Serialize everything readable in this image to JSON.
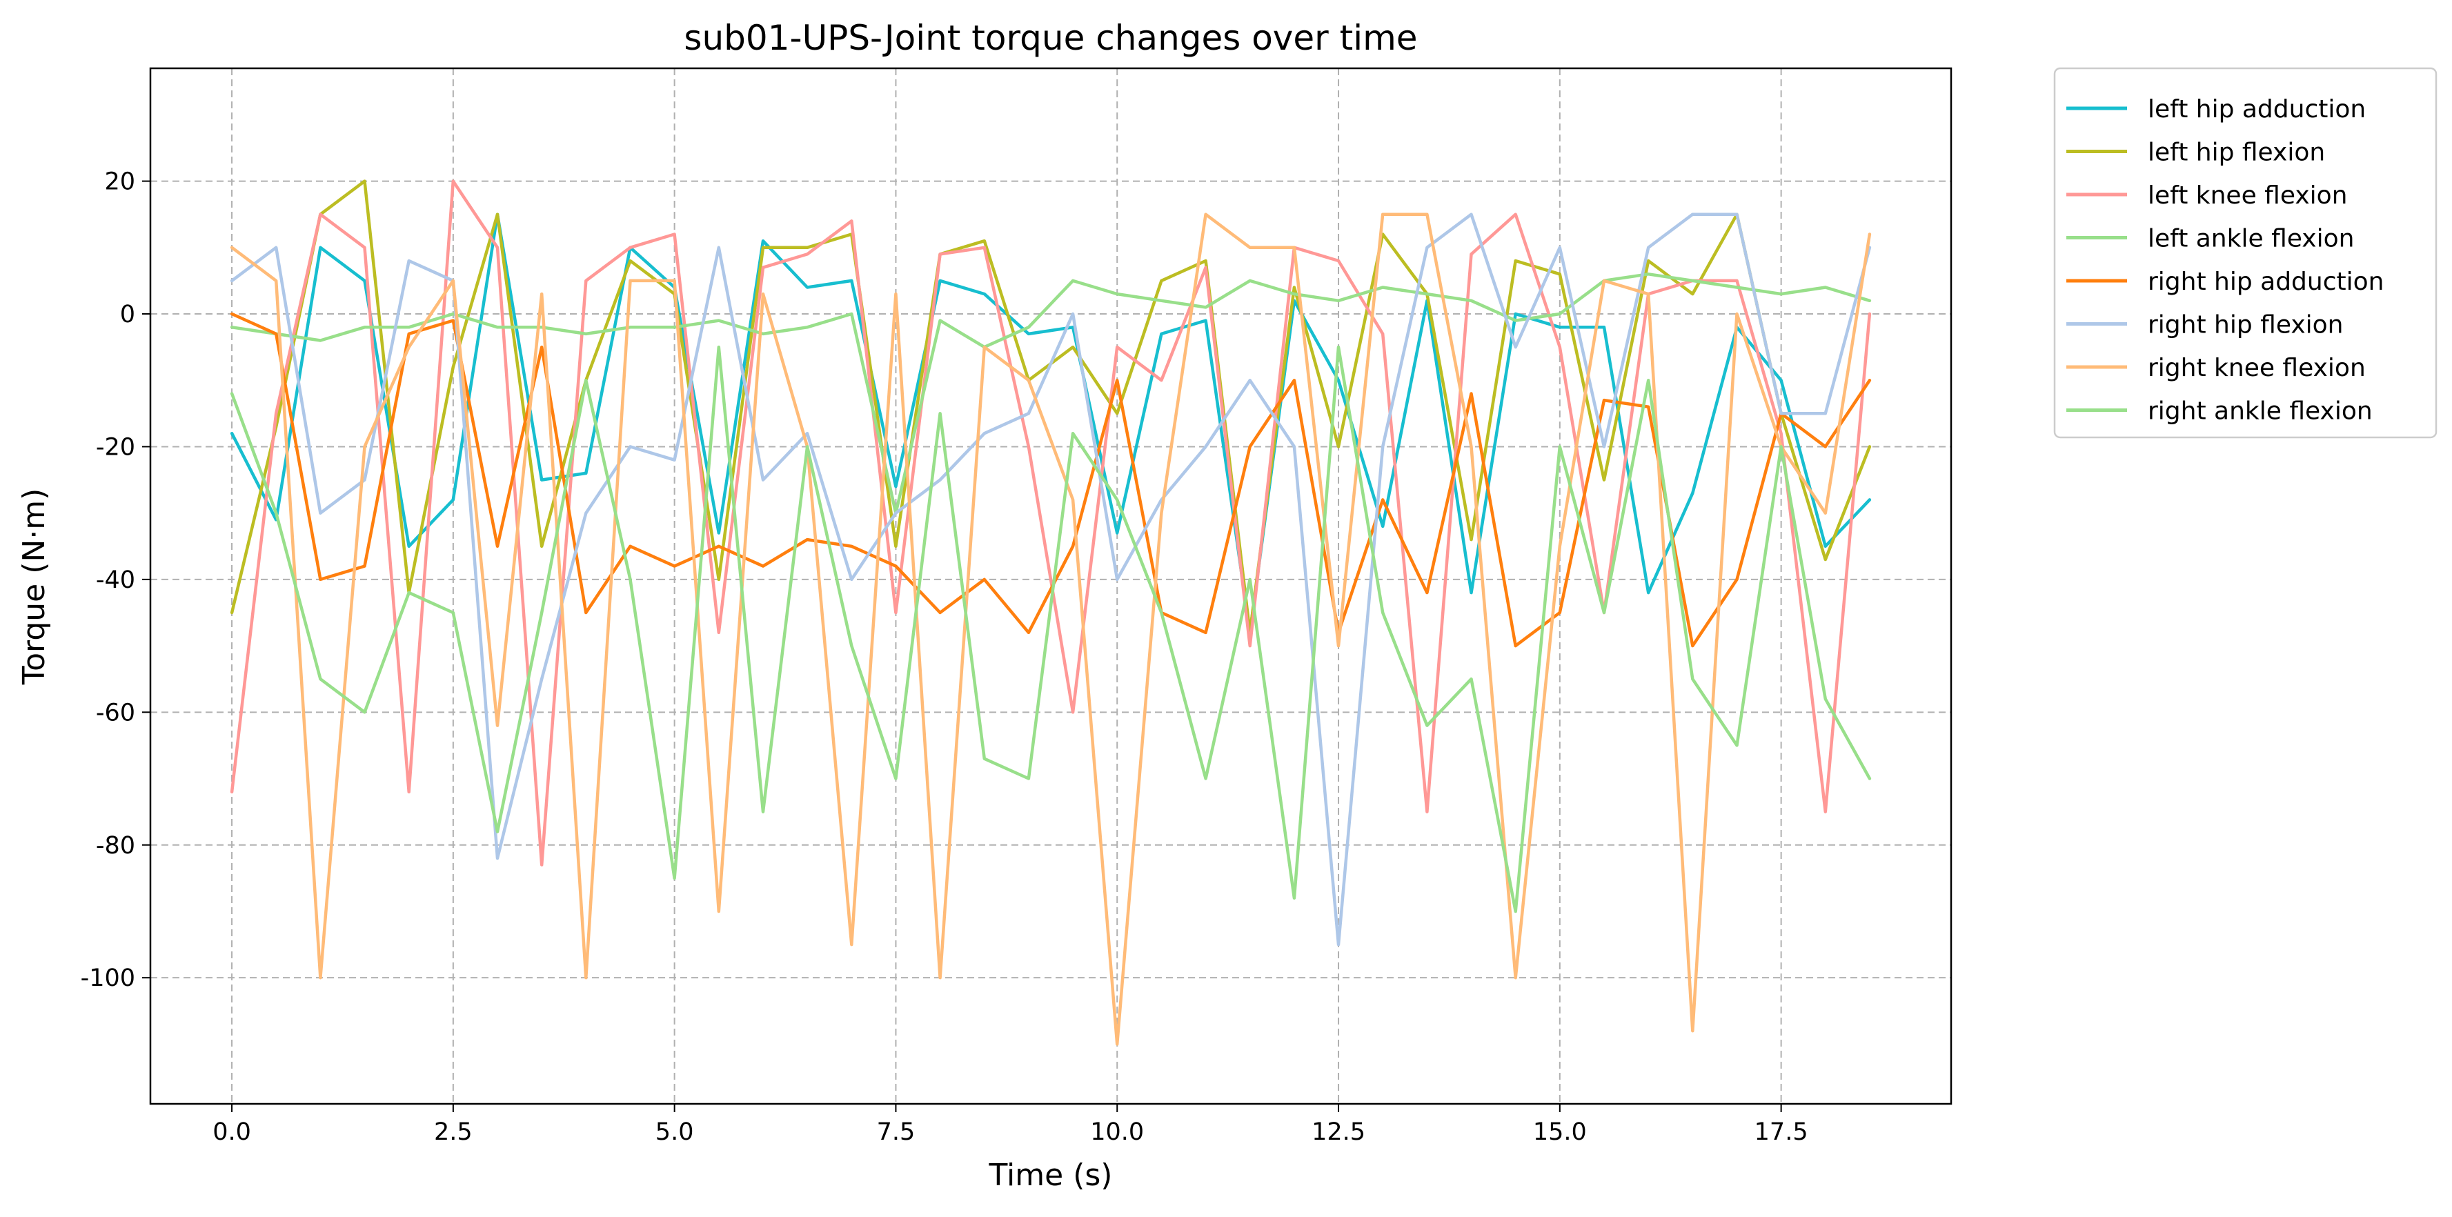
{
  "chart_data": {
    "type": "line",
    "title": "sub01-UPS-Joint torque changes over time",
    "xlabel": "Time (s)",
    "ylabel": "Torque (N·m)",
    "xlim": [
      -0.92,
      19.42
    ],
    "ylim": [
      -119,
      37
    ],
    "xticks": [
      0,
      2.5,
      5,
      7.5,
      10,
      12.5,
      15,
      17.5
    ],
    "xtick_labels": [
      "0.0",
      "2.5",
      "5.0",
      "7.5",
      "10.0",
      "12.5",
      "15.0",
      "17.5"
    ],
    "yticks": [
      20,
      0,
      -20,
      -40,
      -60,
      -80,
      -100
    ],
    "ytick_labels": [
      "20",
      "0",
      "-20",
      "-40",
      "-60",
      "-80",
      "-100"
    ],
    "grid": true,
    "legend_position": "outside-right-top",
    "x": [
      0,
      0.5,
      1,
      1.5,
      2,
      2.5,
      3,
      3.5,
      4,
      4.5,
      5,
      5.5,
      6,
      6.5,
      7,
      7.5,
      8,
      8.5,
      9,
      9.5,
      10,
      10.5,
      11,
      11.5,
      12,
      12.5,
      13,
      13.5,
      14,
      14.5,
      15,
      15.5,
      16,
      16.5,
      17,
      17.5,
      18,
      18.5
    ],
    "series": [
      {
        "name": "left hip adduction",
        "color": "#17becf",
        "values": [
          -18,
          -31,
          10,
          5,
          -35,
          -28,
          15,
          -25,
          -24,
          10,
          4,
          -33,
          11,
          4,
          5,
          -26,
          5,
          3,
          -3,
          -2,
          -33,
          -3,
          -1,
          -48,
          2,
          -10,
          -32,
          2,
          -42,
          0,
          -2,
          -2,
          -42,
          -27,
          -2,
          -10,
          -35,
          -28
        ]
      },
      {
        "name": "left hip flexion",
        "color": "#bcbd22",
        "values": [
          -45,
          -17,
          15,
          20,
          -42,
          -8,
          15,
          -35,
          -10,
          8,
          3,
          -40,
          10,
          10,
          12,
          -35,
          9,
          11,
          -10,
          -5,
          -15,
          5,
          8,
          -48,
          4,
          -20,
          12,
          3,
          -34,
          8,
          6,
          -25,
          8,
          3,
          15,
          -15,
          -37,
          -20
        ]
      },
      {
        "name": "left knee flexion",
        "color": "#ff9896",
        "values": [
          -72,
          -15,
          15,
          10,
          -72,
          20,
          10,
          -83,
          5,
          10,
          12,
          -48,
          7,
          9,
          14,
          -45,
          9,
          10,
          -20,
          -60,
          -5,
          -10,
          7,
          -50,
          10,
          8,
          -3,
          -75,
          9,
          15,
          -5,
          -45,
          3,
          5,
          5,
          -18,
          -75,
          0
        ]
      },
      {
        "name": " left ankle flexion",
        "color": "#98df8a",
        "values": [
          -2,
          -3,
          -4,
          -2,
          -2,
          0,
          -2,
          -2,
          -3,
          -2,
          -2,
          -1,
          -3,
          -2,
          0,
          -30,
          -1,
          -5,
          -2,
          5,
          3,
          2,
          1,
          5,
          3,
          2,
          4,
          3,
          2,
          -1,
          0,
          5,
          6,
          5,
          4,
          3,
          4,
          2
        ]
      },
      {
        "name": "right hip adduction",
        "color": "#ff7f0e",
        "values": [
          0,
          -3,
          -40,
          -38,
          -3,
          -1,
          -35,
          -5,
          -45,
          -35,
          -38,
          -35,
          -38,
          -34,
          -35,
          -38,
          -45,
          -40,
          -48,
          -35,
          -10,
          -45,
          -48,
          -20,
          -10,
          -48,
          -28,
          -42,
          -12,
          -50,
          -45,
          -13,
          -14,
          -50,
          -40,
          -15,
          -20,
          -10
        ]
      },
      {
        "name": "right hip flexion",
        "color": "#aec7e8",
        "values": [
          5,
          10,
          -30,
          -25,
          8,
          5,
          -82,
          -55,
          -30,
          -20,
          -22,
          10,
          -25,
          -18,
          -40,
          -30,
          -25,
          -18,
          -15,
          0,
          -40,
          -28,
          -20,
          -10,
          -20,
          -95,
          -20,
          10,
          15,
          -5,
          10,
          -20,
          10,
          15,
          15,
          -15,
          -15,
          10
        ]
      },
      {
        "name": "right knee flexion",
        "color": "#ffbb78",
        "values": [
          10,
          5,
          -100,
          -20,
          -5,
          5,
          -62,
          3,
          -100,
          5,
          5,
          -90,
          3,
          -20,
          -95,
          3,
          -100,
          -5,
          -10,
          -28,
          -110,
          -30,
          15,
          10,
          10,
          -50,
          15,
          15,
          -20,
          -100,
          -35,
          5,
          3,
          -108,
          0,
          -20,
          -30,
          12
        ]
      },
      {
        "name": "right ankle flexion",
        "color": "#98df8a",
        "values": [
          -12,
          -30,
          -55,
          -60,
          -42,
          -45,
          -78,
          -45,
          -10,
          -40,
          -85,
          -5,
          -75,
          -20,
          -50,
          -70,
          -15,
          -67,
          -70,
          -18,
          -28,
          -45,
          -70,
          -40,
          -88,
          -5,
          -45,
          -62,
          -55,
          -90,
          -20,
          -45,
          -10,
          -55,
          -65,
          -20,
          -58,
          -70
        ]
      }
    ]
  }
}
